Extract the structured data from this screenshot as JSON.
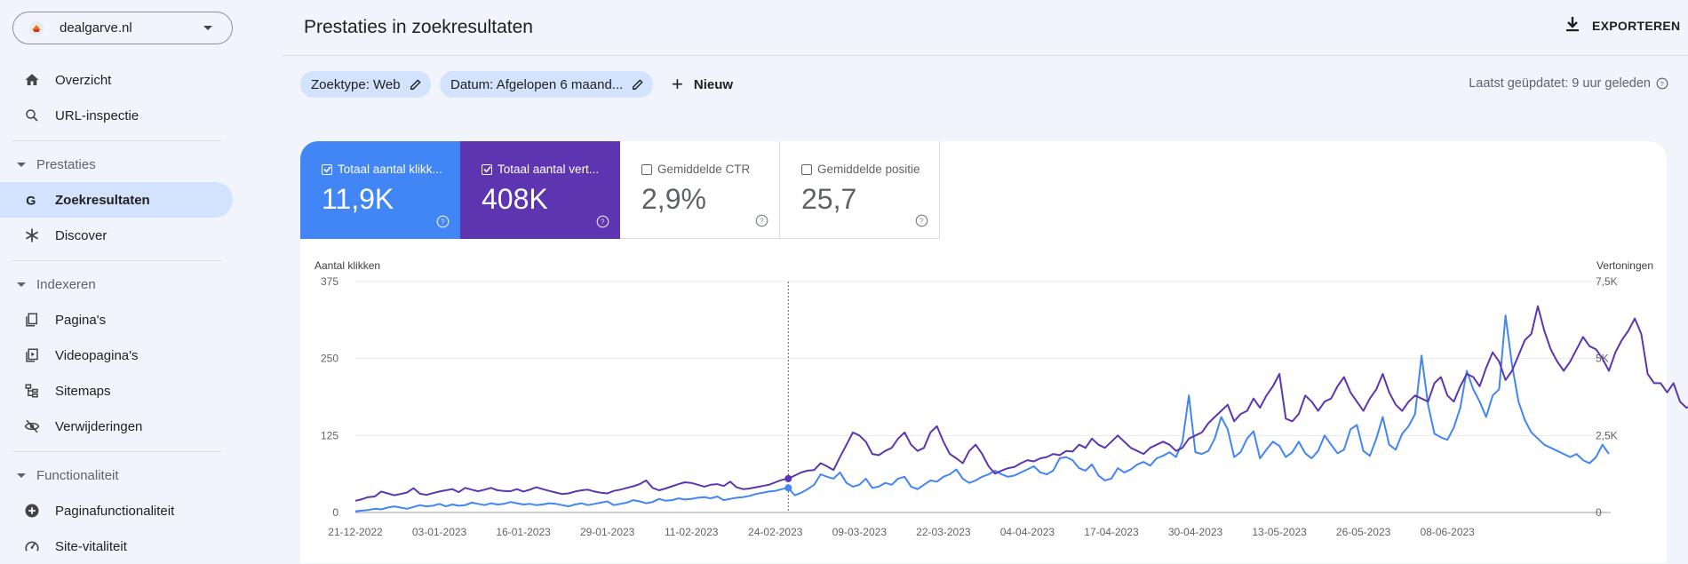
{
  "property": {
    "name": "dealgarve.nl"
  },
  "sidebar": {
    "items": [
      {
        "label": "Overzicht"
      },
      {
        "label": "URL-inspectie"
      },
      {
        "label": "Zoekresultaten"
      },
      {
        "label": "Discover"
      },
      {
        "label": "Pagina's"
      },
      {
        "label": "Videopagina's"
      },
      {
        "label": "Sitemaps"
      },
      {
        "label": "Verwijderingen"
      },
      {
        "label": "Paginafunctionaliteit"
      },
      {
        "label": "Site-vitaliteit"
      }
    ],
    "sections": [
      "Prestaties",
      "Indexeren",
      "Functionaliteit"
    ]
  },
  "header": {
    "title": "Prestaties in zoekresultaten",
    "export_label": "EXPORTEREN"
  },
  "filters": {
    "search_type": "Zoektype: Web",
    "date": "Datum: Afgelopen 6 maand...",
    "new_label": "Nieuw",
    "last_updated": "Laatst geüpdatet: 9 uur geleden"
  },
  "metrics": [
    {
      "label": "Totaal aantal klikk...",
      "value": "11,9K",
      "checked": true,
      "color": "#4285f4"
    },
    {
      "label": "Totaal aantal vert...",
      "value": "408K",
      "checked": true,
      "color": "#5e35b1"
    },
    {
      "label": "Gemiddelde CTR",
      "value": "2,9%",
      "checked": false
    },
    {
      "label": "Gemiddelde positie",
      "value": "25,7",
      "checked": false
    }
  ],
  "colors": {
    "clicks": "#4285f4",
    "impressions": "#5e35b1",
    "active_nav": "#d3e3fd"
  },
  "chart_data": {
    "type": "line",
    "left_axis_title": "Aantal klikken",
    "right_axis_title": "Vertoningen",
    "left_ticks": [
      "375",
      "250",
      "125",
      "0"
    ],
    "right_ticks": [
      "7,5K",
      "5K",
      "2,5K",
      "0"
    ],
    "ylim_left": [
      0,
      375
    ],
    "ylim_right": [
      0,
      7500
    ],
    "x_ticks": [
      "21-12-2022",
      "03-01-2023",
      "16-01-2023",
      "29-01-2023",
      "11-02-2023",
      "24-02-2023",
      "09-03-2023",
      "22-03-2023",
      "04-04-2023",
      "17-04-2023",
      "30-04-2023",
      "13-05-2023",
      "26-05-2023",
      "08-06-2023"
    ],
    "hover_day": 67,
    "series": [
      {
        "name": "Totaal aantal klikken",
        "axis": "left",
        "values": [
          2,
          3,
          4,
          6,
          5,
          8,
          10,
          8,
          6,
          9,
          12,
          10,
          11,
          14,
          10,
          13,
          11,
          12,
          16,
          14,
          12,
          15,
          13,
          14,
          17,
          15,
          13,
          14,
          12,
          13,
          15,
          14,
          12,
          10,
          13,
          15,
          12,
          14,
          16,
          18,
          12,
          14,
          16,
          20,
          18,
          15,
          17,
          22,
          19,
          20,
          23,
          21,
          22,
          24,
          25,
          23,
          26,
          20,
          22,
          24,
          25,
          27,
          30,
          32,
          34,
          35,
          38,
          40,
          28,
          32,
          38,
          45,
          62,
          58,
          55,
          65,
          48,
          42,
          45,
          55,
          40,
          42,
          48,
          45,
          55,
          58,
          42,
          38,
          45,
          52,
          50,
          58,
          62,
          70,
          55,
          48,
          52,
          58,
          62,
          68,
          62,
          58,
          60,
          65,
          70,
          75,
          65,
          62,
          68,
          88,
          90,
          85,
          72,
          68,
          78,
          60,
          52,
          55,
          72,
          65,
          70,
          78,
          82,
          76,
          88,
          92,
          98,
          90,
          115,
          190,
          98,
          95,
          100,
          120,
          155,
          135,
          90,
          98,
          120,
          132,
          88,
          102,
          115,
          108,
          90,
          98,
          115,
          96,
          88,
          100,
          125,
          110,
          96,
          102,
          135,
          142,
          100,
          92,
          120,
          155,
          110,
          102,
          128,
          140,
          160,
          255,
          175,
          128,
          122,
          118,
          138,
          170,
          230,
          200,
          180,
          155,
          190,
          200,
          320,
          240,
          180,
          150,
          130,
          120,
          110,
          105,
          100,
          95,
          90,
          95,
          85,
          80,
          90,
          110,
          95
        ],
        "note_placeholder": ""
      },
      {
        "name": "Totaal aantal vertoningen",
        "axis": "right",
        "values": [
          380,
          430,
          500,
          520,
          680,
          620,
          560,
          600,
          650,
          790,
          610,
          570,
          630,
          680,
          720,
          760,
          660,
          800,
          740,
          690,
          740,
          800,
          720,
          700,
          690,
          760,
          680,
          740,
          820,
          760,
          700,
          650,
          600,
          620,
          680,
          720,
          740,
          680,
          640,
          620,
          700,
          740,
          800,
          850,
          920,
          1040,
          800,
          720,
          780,
          850,
          920,
          980,
          960,
          900,
          840,
          900,
          920,
          860,
          1000,
          820,
          760,
          780,
          820,
          860,
          900,
          980,
          1060,
          1100,
          1200,
          1300,
          1360,
          1380,
          1600,
          1500,
          1380,
          1800,
          2200,
          2600,
          2500,
          2300,
          1900,
          1860,
          2000,
          2100,
          2400,
          2600,
          2200,
          2000,
          2100,
          2600,
          2800,
          2300,
          1900,
          1760,
          1600,
          2000,
          2200,
          1900,
          1500,
          1260,
          1360,
          1440,
          1480,
          1600,
          1700,
          1660,
          1760,
          1800,
          1900,
          1860,
          2000,
          1980,
          2200,
          2100,
          2400,
          2200,
          2100,
          2300,
          2500,
          2300,
          2100,
          2000,
          1900,
          2100,
          2200,
          2300,
          2200,
          2000,
          2100,
          2400,
          2500,
          2600,
          2900,
          3100,
          3300,
          3500,
          2960,
          3200,
          3300,
          3700,
          3400,
          3800,
          4100,
          4500,
          3050,
          2960,
          3200,
          3800,
          3600,
          3300,
          3600,
          3700,
          4100,
          4400,
          3900,
          3600,
          3300,
          3700,
          4000,
          4500,
          3900,
          3500,
          3300,
          3600,
          3800,
          3700,
          3600,
          4200,
          4400,
          3800,
          3600,
          4100,
          4500,
          4400,
          4100,
          4700,
          5200,
          4900,
          4300,
          4600,
          5100,
          5600,
          5800,
          6700,
          5900,
          5300,
          4900,
          4600,
          4900,
          5300,
          5700,
          5400,
          5300,
          5000,
          4600,
          5200,
          5600,
          5900,
          6300,
          5800,
          4500,
          4200,
          4200,
          3900,
          4200,
          3600,
          3400,
          3500,
          3800,
          3600,
          3400,
          3100,
          3400,
          3600,
          3700
        ]
      }
    ]
  }
}
